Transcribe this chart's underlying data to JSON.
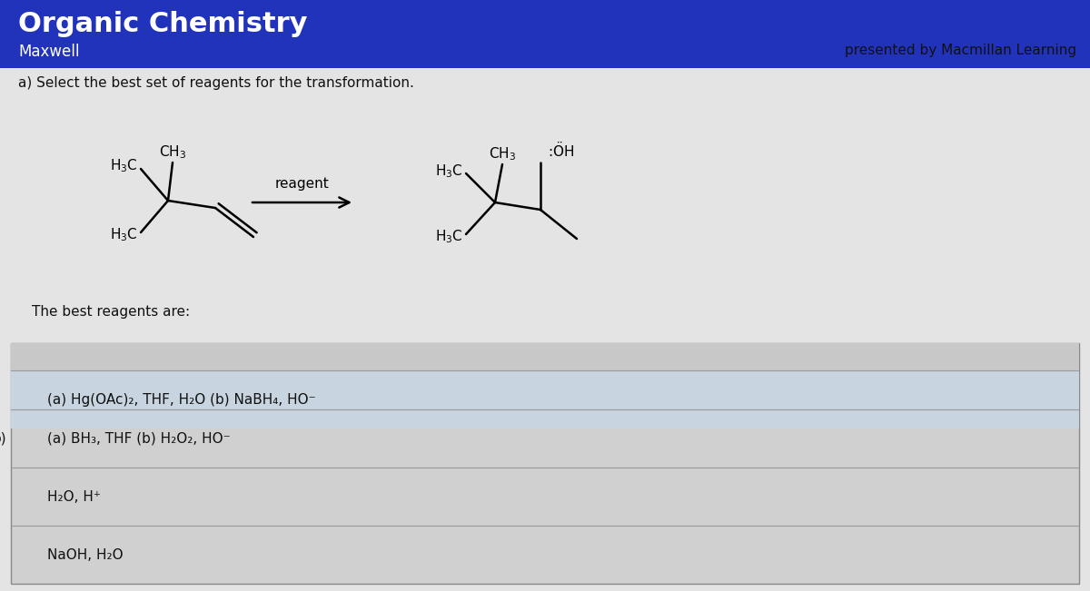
{
  "title": "Organic Chemistry",
  "subtitle": "Maxwell",
  "presented_by": "presented by Macmillan Learning",
  "header_bg": "#2233bb",
  "header_text_color": "#ffffff",
  "body_bg": "#c8c8c8",
  "content_bg": "#e0e0e0",
  "question_text": "a) Select the best set of reagents for the transformation.",
  "reagent_label": "reagent",
  "the_best_text": "The best reagents are:",
  "option_a": "(a) Hg(OAc)₂, THF, H₂O (b) NaBH₄, HO⁻",
  "option_b_label": "b)",
  "option_b": "(a) BH₃, THF (b) H₂O₂, HO⁻",
  "option_c": "H₂O, H⁺",
  "option_d": "NaOH, H₂O"
}
